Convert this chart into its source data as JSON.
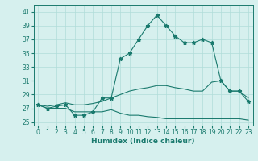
{
  "x": [
    0,
    1,
    2,
    3,
    4,
    5,
    6,
    7,
    8,
    9,
    10,
    11,
    12,
    13,
    14,
    15,
    16,
    17,
    18,
    19,
    20,
    21,
    22,
    23
  ],
  "y_main": [
    27.5,
    27.0,
    27.3,
    27.5,
    26.0,
    26.0,
    26.5,
    28.5,
    28.5,
    34.2,
    35.0,
    37.0,
    39.0,
    40.5,
    39.0,
    37.5,
    36.5,
    36.5,
    37.0,
    36.5,
    31.0,
    29.5,
    29.5,
    28.0
  ],
  "y_max": [
    27.5,
    27.3,
    27.5,
    27.8,
    27.5,
    27.5,
    27.7,
    28.0,
    28.5,
    29.0,
    29.5,
    29.8,
    30.0,
    30.3,
    30.3,
    30.0,
    29.8,
    29.5,
    29.5,
    30.8,
    31.0,
    29.5,
    29.5,
    28.5
  ],
  "y_min": [
    27.5,
    27.0,
    27.0,
    27.0,
    26.5,
    26.5,
    26.5,
    26.5,
    26.8,
    26.3,
    26.0,
    26.0,
    25.8,
    25.7,
    25.5,
    25.5,
    25.5,
    25.5,
    25.5,
    25.5,
    25.5,
    25.5,
    25.5,
    25.3
  ],
  "line_color": "#1a7a6e",
  "bg_color": "#d6f0ee",
  "grid_color": "#b0ddd9",
  "xlabel": "Humidex (Indice chaleur)",
  "ylim": [
    24.5,
    42
  ],
  "xlim": [
    -0.5,
    23.5
  ],
  "yticks": [
    25,
    27,
    29,
    31,
    33,
    35,
    37,
    39,
    41
  ],
  "xticks": [
    0,
    1,
    2,
    3,
    4,
    5,
    6,
    7,
    8,
    9,
    10,
    11,
    12,
    13,
    14,
    15,
    16,
    17,
    18,
    19,
    20,
    21,
    22,
    23
  ],
  "marker": "*",
  "markersize": 3.5,
  "linewidth": 0.8,
  "tick_fontsize": 5.5,
  "xlabel_fontsize": 6.5
}
